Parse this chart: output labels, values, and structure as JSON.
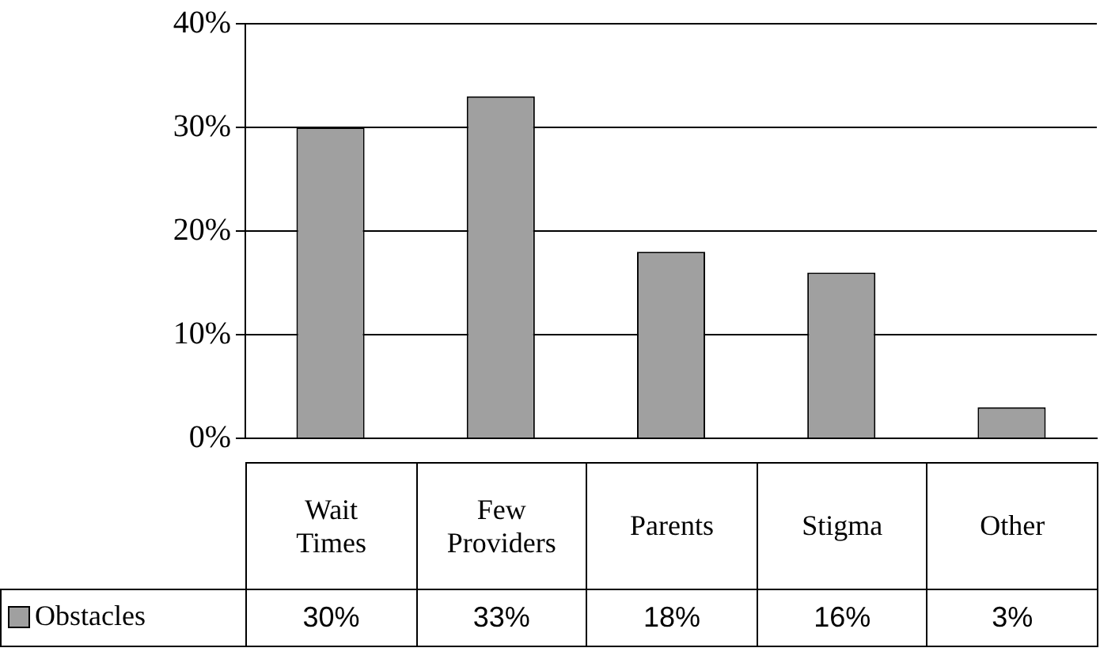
{
  "chart_data": {
    "type": "bar",
    "categories": [
      "Wait Times",
      "Few Providers",
      "Parents",
      "Stigma",
      "Other"
    ],
    "series": [
      {
        "name": "Obstacles",
        "color": "#a0a0a0",
        "values": [
          30,
          33,
          18,
          16,
          3
        ],
        "value_labels": [
          "30%",
          "33%",
          "18%",
          "16%",
          "3%"
        ]
      }
    ],
    "ylim": [
      0,
      40
    ],
    "yticks": [
      {
        "value": 0,
        "label": "0%"
      },
      {
        "value": 10,
        "label": "10%"
      },
      {
        "value": 20,
        "label": "20%"
      },
      {
        "value": 30,
        "label": "30%"
      },
      {
        "value": 40,
        "label": "40%"
      }
    ],
    "grid": "y",
    "legend": "bottom"
  }
}
